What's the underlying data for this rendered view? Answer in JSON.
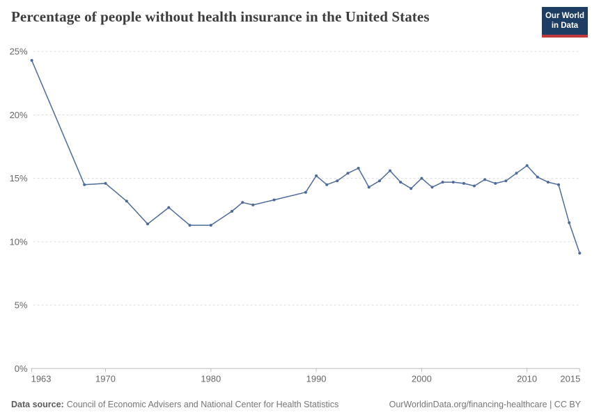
{
  "header": {
    "title": "Percentage of people without health insurance in the United States",
    "logo": {
      "line1": "Our World",
      "line2": "in Data"
    }
  },
  "chart_data": {
    "type": "line",
    "title": "Percentage of people without health insurance in the United States",
    "series_name": "United States",
    "x": [
      1963,
      1968,
      1970,
      1972,
      1974,
      1976,
      1978,
      1980,
      1982,
      1983,
      1984,
      1986,
      1989,
      1990,
      1991,
      1992,
      1993,
      1994,
      1995,
      1996,
      1997,
      1998,
      1999,
      2000,
      2001,
      2002,
      2003,
      2004,
      2005,
      2006,
      2007,
      2008,
      2009,
      2010,
      2011,
      2012,
      2013,
      2014,
      2015
    ],
    "y": [
      24.3,
      14.5,
      14.6,
      13.2,
      11.4,
      12.7,
      11.3,
      11.3,
      12.4,
      13.1,
      12.9,
      13.3,
      13.9,
      15.2,
      14.5,
      14.8,
      15.4,
      15.8,
      14.3,
      14.8,
      15.6,
      14.7,
      14.2,
      15.0,
      14.3,
      14.7,
      14.7,
      14.6,
      14.4,
      14.9,
      14.6,
      14.8,
      15.4,
      16.0,
      15.1,
      14.7,
      14.5,
      11.5,
      9.1
    ],
    "xlabel": "",
    "ylabel": "",
    "xlim": [
      1963,
      2015
    ],
    "ylim": [
      0,
      25
    ],
    "xticks": [
      1963,
      1970,
      1980,
      1990,
      2000,
      2010,
      2015
    ],
    "yticks": [
      0,
      5,
      10,
      15,
      20,
      25
    ],
    "ytick_suffix": "%",
    "grid": "horizontal-dashed",
    "legend": "none",
    "markers": true
  },
  "footer": {
    "source_label": "Data source:",
    "source_text": "Council of Economic Advisers and National Center for Health Statistics",
    "attribution": "OurWorldinData.org/financing-healthcare | CC BY"
  },
  "colors": {
    "line": "#4C6A9C",
    "grid": "#DCDCDC",
    "axis": "#BBBBBB",
    "tick_label": "#666666",
    "title": "#3D3D3D",
    "footer_text": "#757575",
    "footer_label": "#5A5A5A",
    "logo_bg": "#1D3D63",
    "logo_accent": "#C2383D",
    "background": "#FFFFFF"
  }
}
